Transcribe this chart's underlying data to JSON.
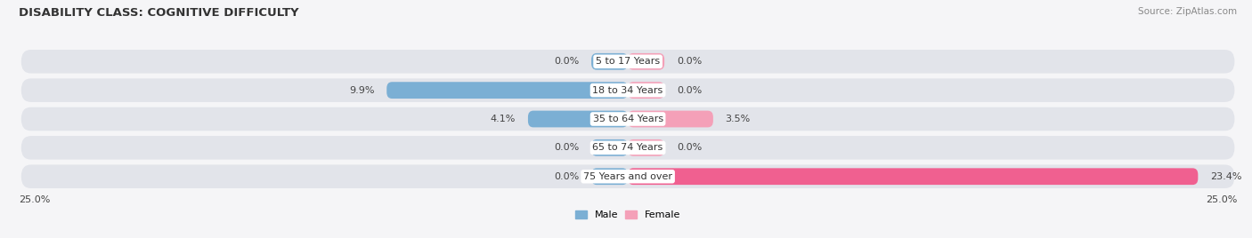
{
  "title": "DISABILITY CLASS: COGNITIVE DIFFICULTY",
  "source": "Source: ZipAtlas.com",
  "categories": [
    "5 to 17 Years",
    "18 to 34 Years",
    "35 to 64 Years",
    "65 to 74 Years",
    "75 Years and over"
  ],
  "male_values": [
    0.0,
    9.9,
    4.1,
    0.0,
    0.0
  ],
  "female_values": [
    0.0,
    0.0,
    3.5,
    0.0,
    23.4
  ],
  "male_color": "#7bafd4",
  "female_color": "#f4a0b8",
  "female_color_bright": "#f06090",
  "bar_bg_color": "#e2e4ea",
  "bar_bg_color_alt": "#ebebf0",
  "axis_limit": 25.0,
  "min_bar": 1.5,
  "title_fontsize": 9.5,
  "source_fontsize": 7.5,
  "label_fontsize": 8,
  "tick_fontsize": 8,
  "background_color": "#f5f5f7"
}
